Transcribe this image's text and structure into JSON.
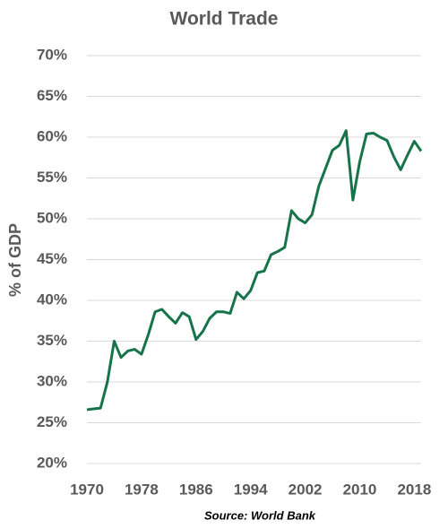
{
  "chart_data": {
    "type": "line",
    "title": "World Trade",
    "y_label": "% of GDP",
    "source": "Source: World Bank",
    "x": [
      1970,
      1971,
      1972,
      1973,
      1974,
      1975,
      1976,
      1977,
      1978,
      1979,
      1980,
      1981,
      1982,
      1983,
      1984,
      1985,
      1986,
      1987,
      1988,
      1989,
      1990,
      1991,
      1992,
      1993,
      1994,
      1995,
      1996,
      1997,
      1998,
      1999,
      2000,
      2001,
      2002,
      2003,
      2004,
      2005,
      2006,
      2007,
      2008,
      2009,
      2010,
      2011,
      2012,
      2013,
      2014,
      2015,
      2016,
      2017,
      2018,
      2019
    ],
    "y": [
      26.6,
      26.7,
      26.8,
      30,
      35,
      33,
      33.8,
      34,
      33.4,
      35.8,
      38.6,
      38.9,
      38,
      37.2,
      38.5,
      38,
      35.2,
      36.2,
      37.8,
      38.6,
      38.6,
      38.4,
      41,
      40.2,
      41.2,
      43.4,
      43.6,
      45.6,
      46,
      46.5,
      51,
      50,
      49.5,
      50.5,
      54,
      56.2,
      58.4,
      59,
      60.8,
      52.3,
      57,
      60.4,
      60.5,
      60,
      59.6,
      57.6,
      56,
      57.8,
      59.5,
      58.3
    ],
    "color": "#17734a",
    "xlim": [
      1970,
      2019
    ],
    "xticks": [
      1970,
      1978,
      1986,
      1994,
      2002,
      2010,
      2018
    ],
    "ylim": [
      20,
      70
    ],
    "yticks": [
      {
        "value": 20,
        "label": "20%"
      },
      {
        "value": 25,
        "label": "25%"
      },
      {
        "value": 30,
        "label": "30%"
      },
      {
        "value": 35,
        "label": "35%"
      },
      {
        "value": 40,
        "label": "40%"
      },
      {
        "value": 45,
        "label": "45%"
      },
      {
        "value": 50,
        "label": "50%"
      },
      {
        "value": 55,
        "label": "55%"
      },
      {
        "value": 60,
        "label": "60%"
      },
      {
        "value": 65,
        "label": "65%"
      },
      {
        "value": 70,
        "label": "70%"
      }
    ],
    "grid": true
  }
}
